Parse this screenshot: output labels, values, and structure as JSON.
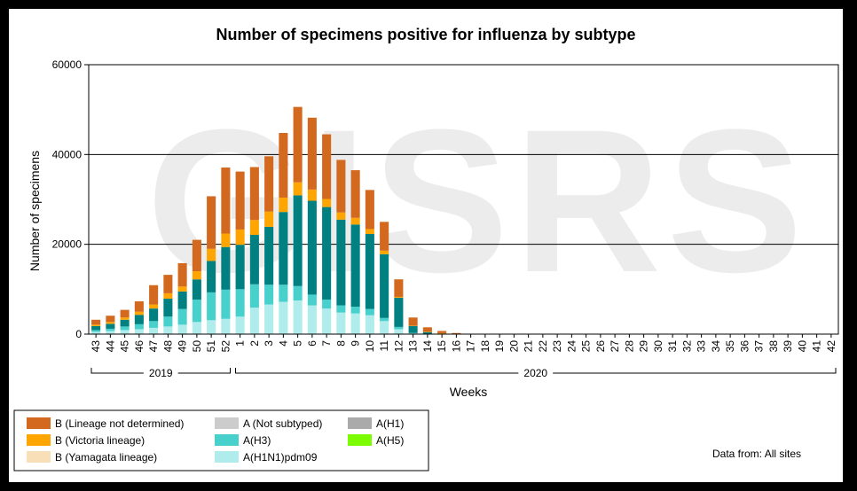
{
  "chart_data": {
    "type": "bar",
    "stacked": true,
    "title": "Number of specimens positive for influenza by subtype",
    "xlabel": "Weeks",
    "ylabel": "Number of specimens",
    "ylim": [
      0,
      60000
    ],
    "yticks": [
      0,
      20000,
      40000,
      60000
    ],
    "grid": true,
    "watermark": "GISRS",
    "source_note": "Data from: All sites",
    "categories": [
      "43",
      "44",
      "45",
      "46",
      "47",
      "48",
      "49",
      "50",
      "51",
      "52",
      "1",
      "2",
      "3",
      "4",
      "5",
      "6",
      "7",
      "8",
      "9",
      "10",
      "11",
      "12",
      "13",
      "14",
      "15",
      "16",
      "17",
      "18",
      "19",
      "20",
      "21",
      "22",
      "23",
      "24",
      "25",
      "26",
      "27",
      "28",
      "29",
      "30",
      "31",
      "32",
      "33",
      "34",
      "35",
      "36",
      "37",
      "38",
      "39",
      "40",
      "41",
      "42"
    ],
    "year_groups": [
      {
        "label": "2019",
        "from": "43",
        "to": "52"
      },
      {
        "label": "2020",
        "from": "1",
        "to": "42"
      }
    ],
    "series": [
      {
        "name": "A(H1N1)pdm09",
        "color": "#b0ecec",
        "values": [
          500,
          700,
          900,
          1100,
          1400,
          1700,
          2100,
          2700,
          3100,
          3400,
          3900,
          5900,
          6600,
          7200,
          7500,
          6400,
          5700,
          4800,
          4600,
          4200,
          2900,
          1100,
          150,
          60,
          30,
          0,
          0,
          0,
          0,
          0,
          0,
          0,
          0,
          0,
          0,
          0,
          0,
          0,
          0,
          0,
          0,
          0,
          0,
          0,
          0,
          0,
          0,
          0,
          0,
          0,
          0,
          0
        ]
      },
      {
        "name": "A(H3)",
        "color": "#48d1cc",
        "values": [
          400,
          500,
          800,
          1100,
          1500,
          2200,
          3500,
          5000,
          6200,
          6500,
          6100,
          5200,
          4400,
          3800,
          3200,
          2400,
          2000,
          1600,
          1500,
          1400,
          700,
          500,
          100,
          40,
          20,
          0,
          0,
          0,
          0,
          0,
          0,
          0,
          0,
          0,
          0,
          0,
          0,
          0,
          0,
          0,
          0,
          0,
          0,
          0,
          0,
          0,
          0,
          0,
          0,
          0,
          0,
          0
        ]
      },
      {
        "name": "A(Not subtyped)",
        "color": "#008080",
        "values": [
          900,
          1100,
          1500,
          2100,
          2800,
          4000,
          3900,
          4500,
          7000,
          9500,
          9900,
          11000,
          12900,
          16200,
          20200,
          20900,
          20600,
          19100,
          18300,
          16700,
          14200,
          6500,
          1600,
          400,
          150,
          50,
          0,
          0,
          0,
          0,
          0,
          0,
          0,
          0,
          0,
          0,
          0,
          0,
          0,
          0,
          0,
          0,
          0,
          0,
          0,
          0,
          0,
          0,
          0,
          0,
          0,
          0
        ]
      },
      {
        "name": "A(H1)",
        "color": "#aaaaaa",
        "values": [
          0,
          0,
          0,
          0,
          0,
          0,
          0,
          0,
          0,
          0,
          0,
          0,
          0,
          0,
          0,
          0,
          0,
          0,
          0,
          0,
          0,
          0,
          0,
          0,
          0,
          0,
          0,
          0,
          0,
          0,
          0,
          0,
          0,
          0,
          0,
          0,
          0,
          0,
          0,
          0,
          0,
          0,
          0,
          0,
          0,
          0,
          0,
          0,
          0,
          0,
          0,
          0
        ]
      },
      {
        "name": "A(H5)",
        "color": "#7cfc00",
        "values": [
          0,
          0,
          0,
          0,
          0,
          0,
          0,
          0,
          0,
          0,
          0,
          0,
          0,
          0,
          0,
          0,
          0,
          0,
          0,
          0,
          0,
          0,
          0,
          0,
          0,
          0,
          0,
          0,
          0,
          0,
          0,
          0,
          0,
          0,
          0,
          0,
          0,
          0,
          0,
          0,
          0,
          0,
          0,
          0,
          0,
          0,
          0,
          0,
          0,
          0,
          0,
          0
        ]
      },
      {
        "name": "B (Yamagata lineage)",
        "color": "#f8dfb8",
        "values": [
          0,
          0,
          0,
          0,
          0,
          0,
          0,
          0,
          0,
          0,
          0,
          0,
          0,
          0,
          0,
          0,
          0,
          0,
          0,
          0,
          0,
          0,
          0,
          0,
          0,
          0,
          0,
          0,
          0,
          0,
          0,
          0,
          0,
          0,
          0,
          0,
          0,
          0,
          0,
          0,
          0,
          0,
          0,
          0,
          0,
          0,
          0,
          0,
          0,
          0,
          0,
          0
        ]
      },
      {
        "name": "B (Victoria lineage)",
        "color": "#ffa500",
        "values": [
          300,
          400,
          500,
          700,
          900,
          1200,
          1100,
          1800,
          2700,
          3000,
          3400,
          3300,
          3400,
          3200,
          2900,
          2500,
          1800,
          1600,
          1500,
          1100,
          800,
          200,
          50,
          20,
          10,
          0,
          0,
          0,
          0,
          0,
          0,
          0,
          0,
          0,
          0,
          0,
          0,
          0,
          0,
          0,
          0,
          0,
          0,
          0,
          0,
          0,
          0,
          0,
          0,
          0,
          0,
          0
        ]
      },
      {
        "name": "B (Lineage not determined)",
        "color": "#d2691e",
        "values": [
          1100,
          1400,
          1700,
          2300,
          4300,
          4100,
          5200,
          7000,
          11700,
          14700,
          12900,
          11800,
          12300,
          14400,
          16800,
          16000,
          14400,
          11700,
          10600,
          8700,
          6400,
          3900,
          1800,
          1000,
          500,
          200,
          100,
          50,
          0,
          0,
          0,
          0,
          0,
          0,
          0,
          0,
          0,
          0,
          0,
          0,
          0,
          0,
          0,
          0,
          0,
          0,
          0,
          0,
          0,
          0,
          0,
          0
        ]
      }
    ],
    "legend": {
      "placement": "bottom-left",
      "columns": [
        [
          "B (Lineage not determined)",
          "B (Victoria lineage)",
          "B (Yamagata lineage)"
        ],
        [
          "A (Not subtyped)",
          "A(H3)",
          "A(H1N1)pdm09"
        ],
        [
          "A(H1)",
          "A(H5)"
        ]
      ]
    }
  }
}
